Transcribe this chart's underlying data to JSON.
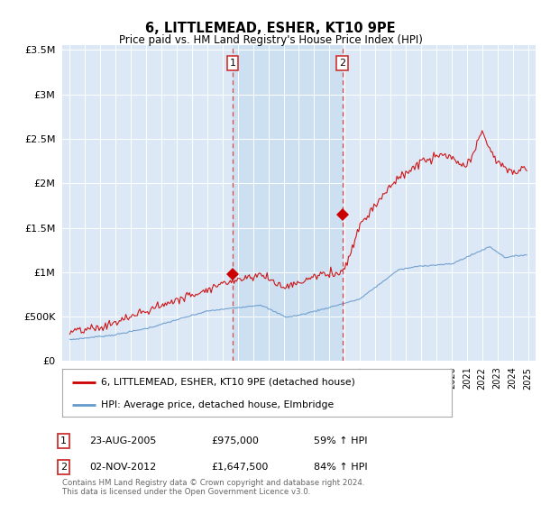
{
  "title": "6, LITTLEMEAD, ESHER, KT10 9PE",
  "subtitle": "Price paid vs. HM Land Registry's House Price Index (HPI)",
  "legend_line1": "6, LITTLEMEAD, ESHER, KT10 9PE (detached house)",
  "legend_line2": "HPI: Average price, detached house, Elmbridge",
  "annotation1_date": "23-AUG-2005",
  "annotation1_price": "£975,000",
  "annotation1_hpi": "59% ↑ HPI",
  "annotation2_date": "02-NOV-2012",
  "annotation2_price": "£1,647,500",
  "annotation2_hpi": "84% ↑ HPI",
  "footnote": "Contains HM Land Registry data © Crown copyright and database right 2024.\nThis data is licensed under the Open Government Licence v3.0.",
  "ylim": [
    0,
    3500000
  ],
  "yticks": [
    0,
    500000,
    1000000,
    1500000,
    2000000,
    2500000,
    3000000,
    3500000
  ],
  "background_color": "#dce8f5",
  "red_color": "#cc0000",
  "blue_color": "#6699cc",
  "vline1_x": 2005.67,
  "vline2_x": 2012.84,
  "marker1_x": 2005.67,
  "marker1_y": 975000,
  "marker2_x": 2012.84,
  "marker2_y": 1647500,
  "xmin": 1994.5,
  "xmax": 2025.5
}
